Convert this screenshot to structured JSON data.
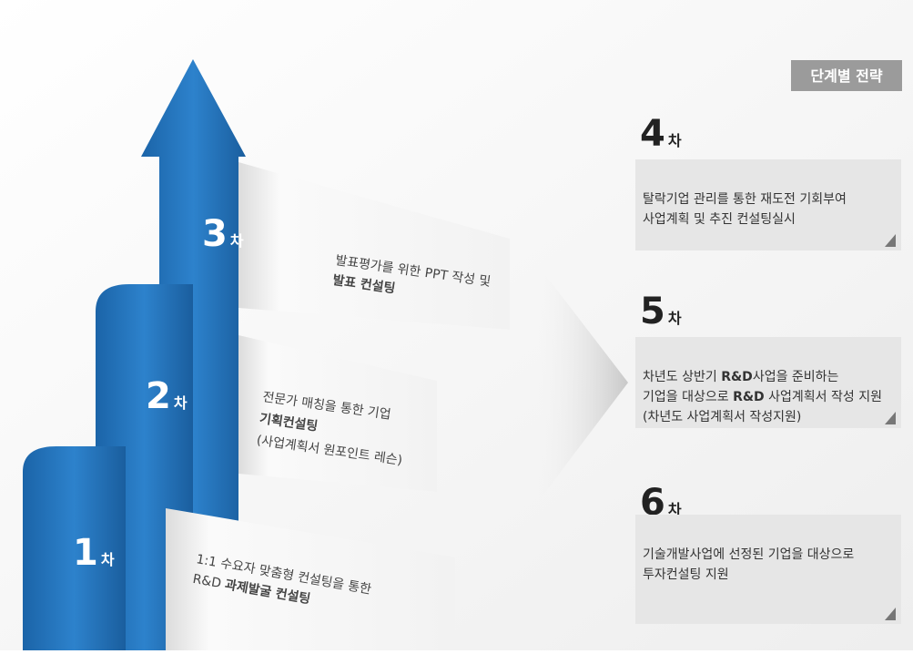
{
  "badge": "단계별 전략",
  "steps": [
    {
      "number": "1",
      "suffix": "차",
      "lines": [
        [
          {
            "text": "1:1 수요자 맞춤형 컨설팅을 통한"
          }
        ],
        [
          {
            "text": "R&D "
          },
          {
            "text": "과제발굴 컨설팅",
            "bold": true
          }
        ]
      ]
    },
    {
      "number": "2",
      "suffix": "차",
      "lines": [
        [
          {
            "text": "전문가 매칭을 통한 기업"
          }
        ],
        [
          {
            "text": "기획컨설팅",
            "bold": true
          }
        ],
        [
          {
            "text": "(사업계획서 원포인트 레슨)"
          }
        ]
      ]
    },
    {
      "number": "3",
      "suffix": "차",
      "lines": [
        [
          {
            "text": "발표평가를 위한 PPT 작성 및"
          }
        ],
        [
          {
            "text": "발표 컨설팅",
            "bold": true
          }
        ]
      ]
    },
    {
      "number": "4",
      "suffix": "차",
      "lines": [
        [
          {
            "text": "탈락기업 관리를  통한  재도전 기회부여"
          }
        ],
        [
          {
            "text": "사업계획 및 추진 컨설팅실시"
          }
        ]
      ]
    },
    {
      "number": "5",
      "suffix": "차",
      "lines": [
        [
          {
            "text": "차년도 상반기 "
          },
          {
            "text": "R&D",
            "bold": true
          },
          {
            "text": "사업을 준비하는"
          }
        ],
        [
          {
            "text": "기업을 대상으로 "
          },
          {
            "text": "R&D",
            "bold": true
          },
          {
            "text": " 사업계획서 작성 지원"
          }
        ],
        [
          {
            "text": "(차년도 사업계획서 작성지원)"
          }
        ]
      ]
    },
    {
      "number": "6",
      "suffix": "차",
      "lines": [
        [
          {
            "text": "기술개발사업에 선정된 기업을 대상으로"
          }
        ],
        [
          {
            "text": "투자컨설팅 지원"
          }
        ]
      ]
    }
  ]
}
